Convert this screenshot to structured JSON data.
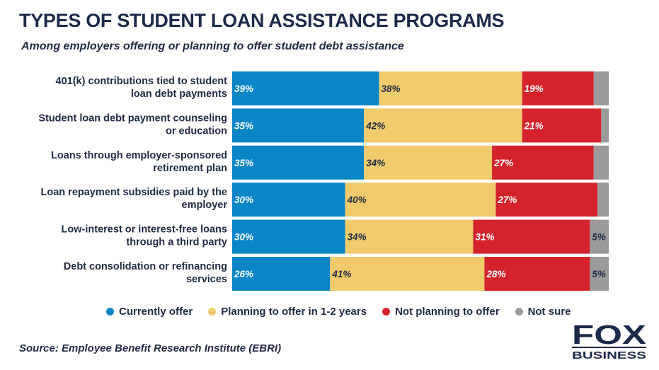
{
  "title": "TYPES OF STUDENT LOAN ASSISTANCE PROGRAMS",
  "subtitle": "Among employers offering or planning to offer student debt assistance",
  "source": "Source: Employee Benefit Research Institute (EBRI)",
  "logo": {
    "line1": "FOX",
    "line2": "BUSINESS"
  },
  "chart_data": {
    "type": "bar",
    "orientation": "horizontal",
    "stacked": true,
    "title": "TYPES OF STUDENT LOAN ASSISTANCE PROGRAMS",
    "subtitle": "Among employers offering or planning to offer student debt assistance",
    "categories": [
      [
        "401(k) contributions tied to student",
        "loan debt payments"
      ],
      [
        "Student loan debt payment counseling",
        "or education"
      ],
      [
        "Loans through employer-sponsored",
        "retirement plan"
      ],
      [
        "Loan repayment subsidies paid by the",
        "employer"
      ],
      [
        "Low-interest or interest-free loans",
        "through a third party"
      ],
      [
        "Debt consolidation or refinancing",
        "services"
      ]
    ],
    "series": [
      {
        "name": "Currently offer",
        "color": "#0a86c7",
        "values": [
          39,
          35,
          35,
          30,
          30,
          26
        ],
        "labels": [
          "39%",
          "35%",
          "35%",
          "30%",
          "30%",
          "26%"
        ]
      },
      {
        "name": "Planning to offer in 1-2 years",
        "color": "#f1cb6c",
        "values": [
          38,
          42,
          34,
          40,
          34,
          41
        ],
        "labels": [
          "38%",
          "42%",
          "34%",
          "40%",
          "34%",
          "41%"
        ]
      },
      {
        "name": "Not planning to offer",
        "color": "#d5232d",
        "values": [
          19,
          21,
          27,
          27,
          31,
          28
        ],
        "labels": [
          "19%",
          "21%",
          "27%",
          "27%",
          "31%",
          "28%"
        ]
      },
      {
        "name": "Not sure",
        "color": "#9b9b9b",
        "values": [
          4,
          2,
          4,
          3,
          5,
          5
        ],
        "labels": [
          "",
          "",
          "",
          "",
          "5%",
          "5%"
        ]
      }
    ],
    "xlim": [
      0,
      100
    ],
    "grid": false,
    "legend_position": "bottom"
  }
}
